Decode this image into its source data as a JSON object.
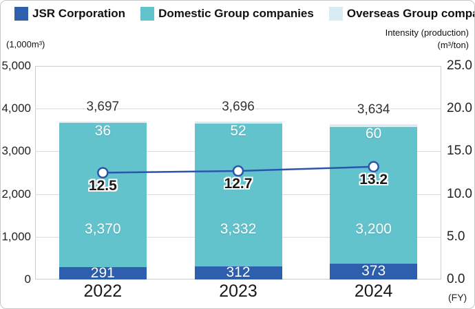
{
  "legend": {
    "items": [
      {
        "label": "JSR Corporation",
        "color": "#2e5fae"
      },
      {
        "label": "Domestic Group companies",
        "color": "#62c3cc"
      },
      {
        "label": "Overseas Group companies",
        "color": "#d9ecf4"
      }
    ]
  },
  "chart_data": {
    "type": "bar",
    "subtype": "stacked-bar-with-line",
    "categories": [
      "2022",
      "2023",
      "2024"
    ],
    "series": [
      {
        "name": "JSR Corporation",
        "color": "#2e5fae",
        "values": [
          291,
          312,
          373
        ]
      },
      {
        "name": "Domestic Group companies",
        "color": "#62c3cc",
        "values": [
          3370,
          3332,
          3200
        ]
      },
      {
        "name": "Overseas Group companies",
        "color": "#d9ecf4",
        "values": [
          36,
          52,
          60
        ]
      }
    ],
    "totals": [
      3697,
      3696,
      3634
    ],
    "line": {
      "name": "Intensity (production)",
      "color": "#2b55ab",
      "values": [
        12.5,
        12.7,
        13.2
      ]
    },
    "left_axis": {
      "unit": "(1,000m³)",
      "ticks": [
        "5,000",
        "4,000",
        "3,000",
        "2,000",
        "1,000",
        "0"
      ],
      "max": 5000
    },
    "right_axis": {
      "title": "Intensity (production)",
      "unit": "(m³/ton)",
      "ticks": [
        "25.0",
        "20.0",
        "15.0",
        "10.0",
        "5.0",
        "0.0"
      ],
      "max": 25,
      "fy_label": "(FY)"
    },
    "grid": true,
    "legend_position": "top"
  }
}
